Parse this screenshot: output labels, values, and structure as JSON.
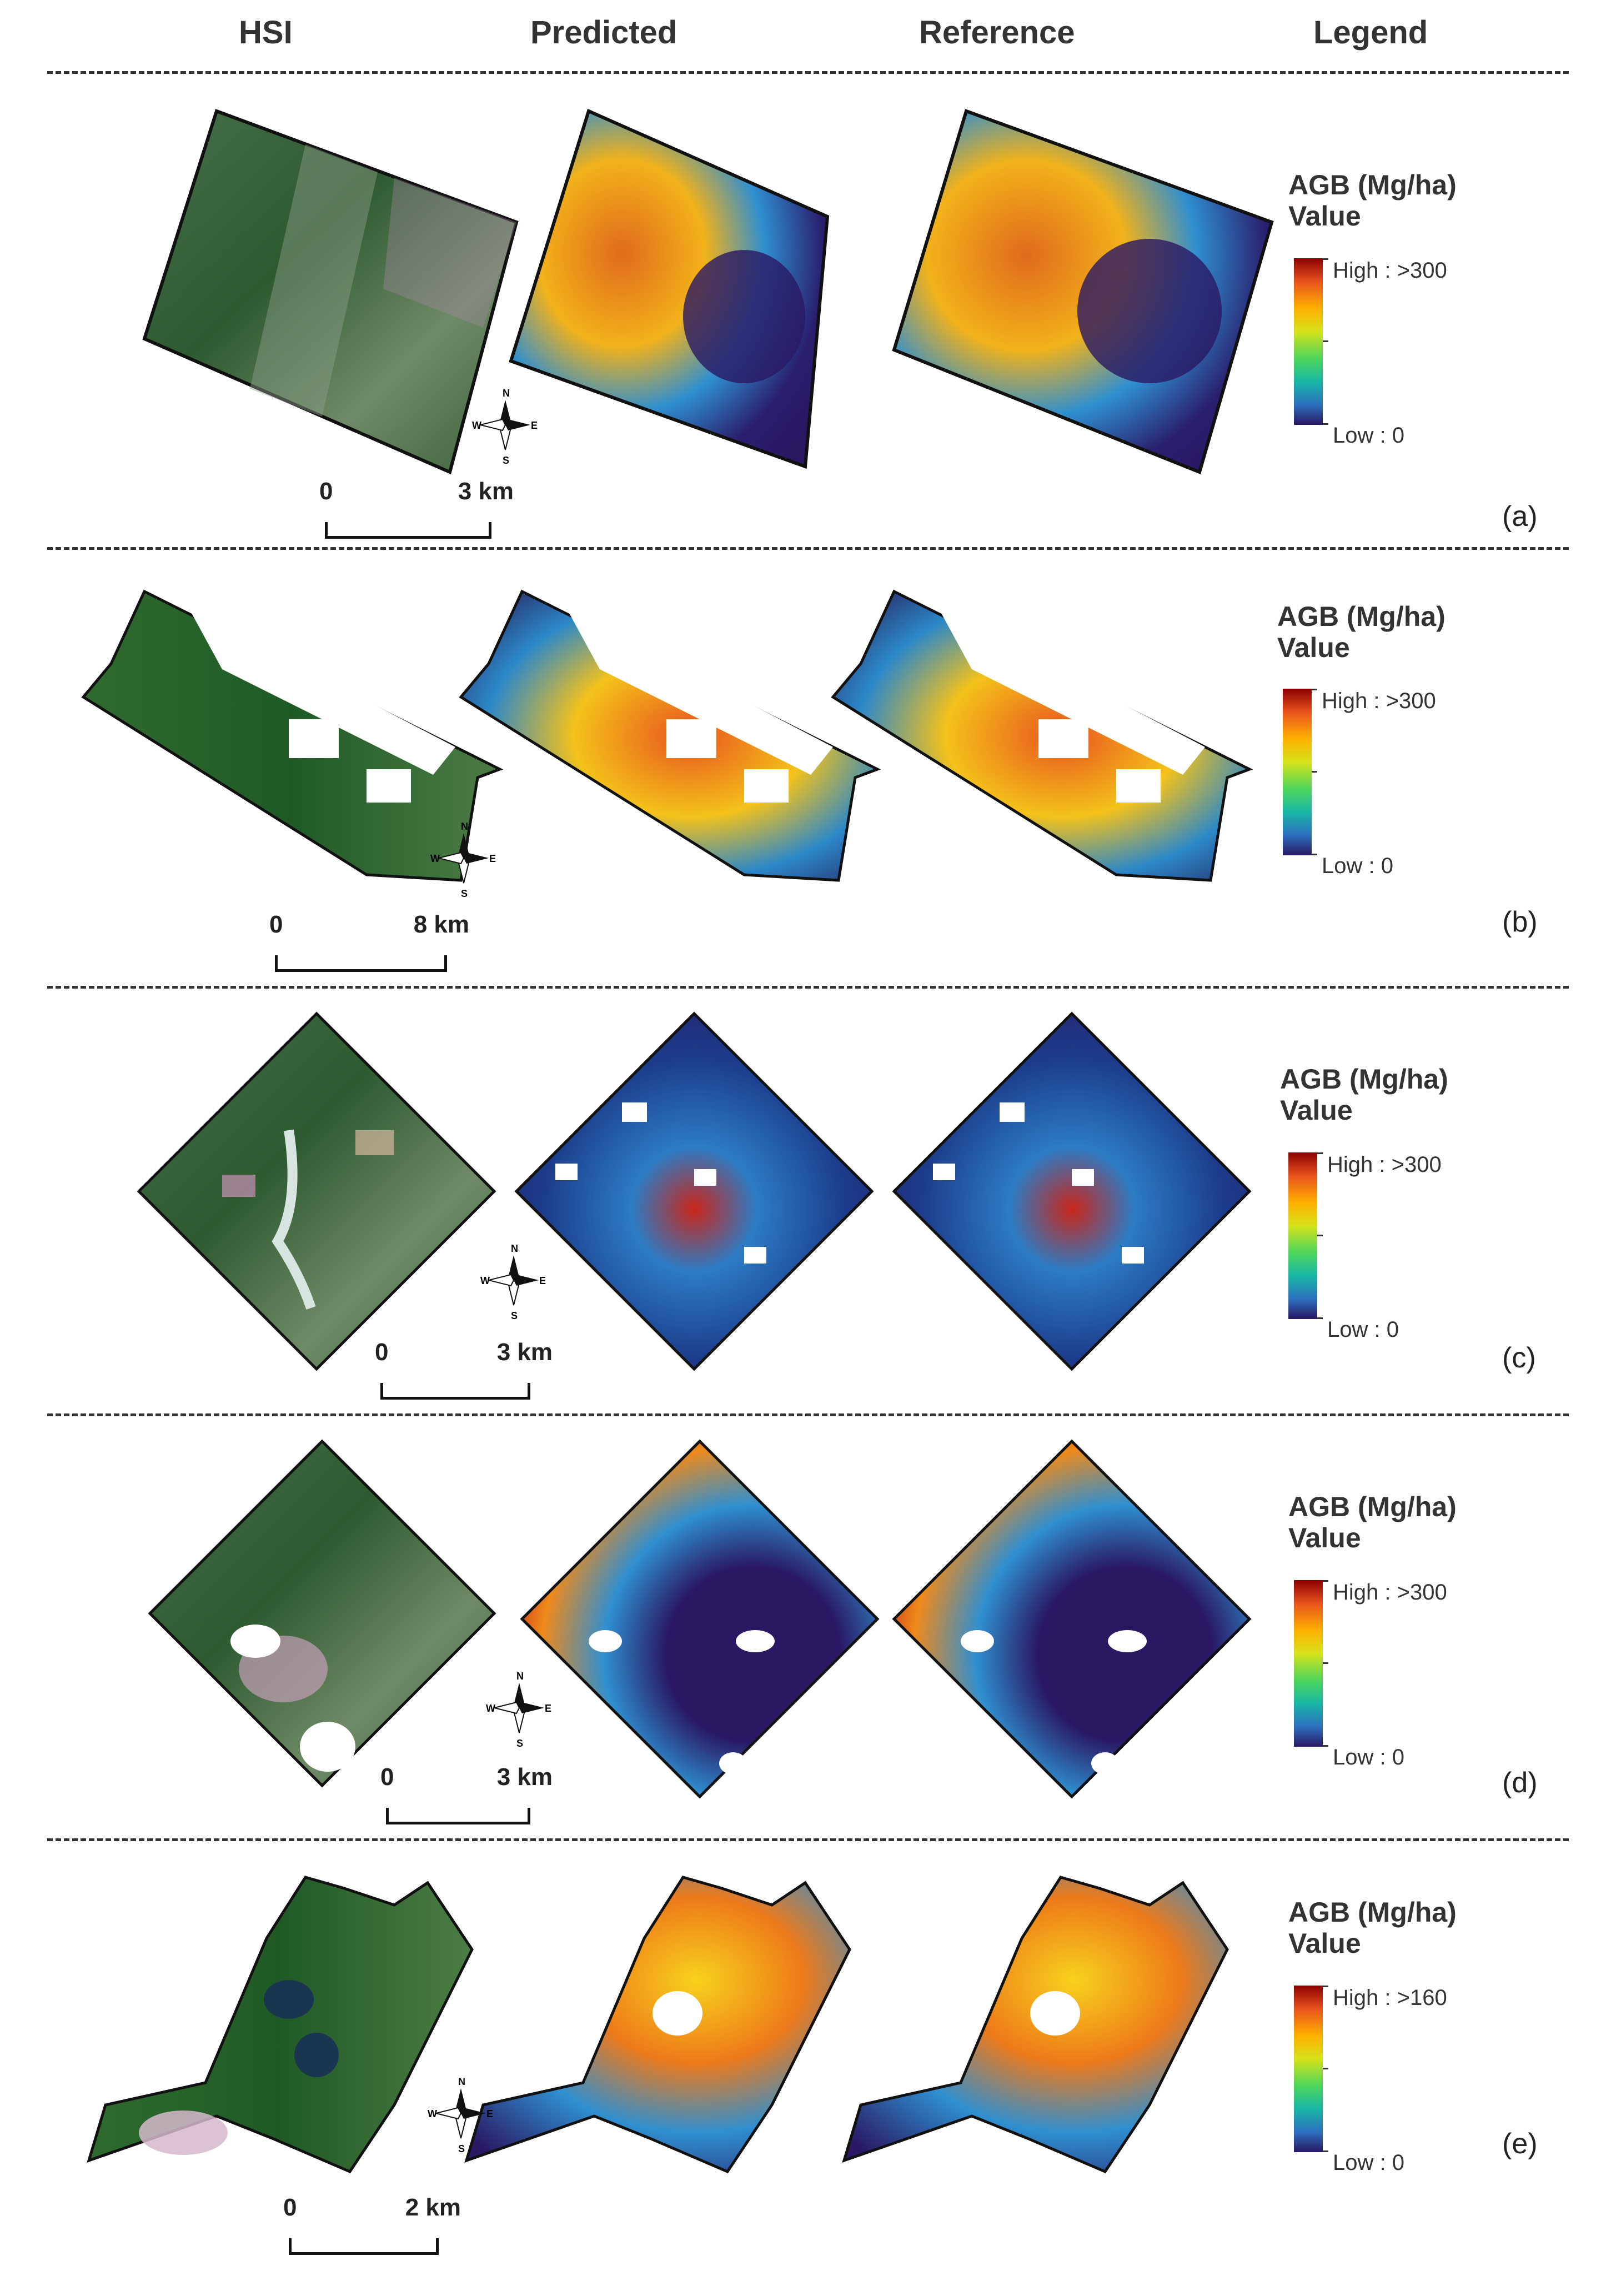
{
  "headers": [
    "HSI",
    "Predicted",
    "Reference",
    "Legend"
  ],
  "legend": {
    "title_line1": "AGB (Mg/ha)",
    "title_line2": "Value",
    "low": "Low : 0"
  },
  "panels": [
    {
      "label": "(a)",
      "high": "High : >300",
      "scale_start": "0",
      "scale_end": "3 km"
    },
    {
      "label": "(b)",
      "high": "High : >300",
      "scale_start": "0",
      "scale_end": "8 km"
    },
    {
      "label": "(c)",
      "high": "High : >300",
      "scale_start": "0",
      "scale_end": "3 km"
    },
    {
      "label": "(d)",
      "high": "High : >300",
      "scale_start": "0",
      "scale_end": "3 km"
    },
    {
      "label": "(e)",
      "high": "High : >160",
      "scale_start": "0",
      "scale_end": "2 km"
    }
  ],
  "compass": {
    "n": "N",
    "s": "S",
    "e": "E",
    "w": "W"
  },
  "colors": {
    "ramp_high": "#8b0000",
    "ramp_mid": "#d6e21a",
    "ramp_low": "#2a1863",
    "hsi_green": "#3c6a3a",
    "hsi_dark": "#1f4d24"
  },
  "icons": [
    "north-arrow-compass-icon"
  ]
}
